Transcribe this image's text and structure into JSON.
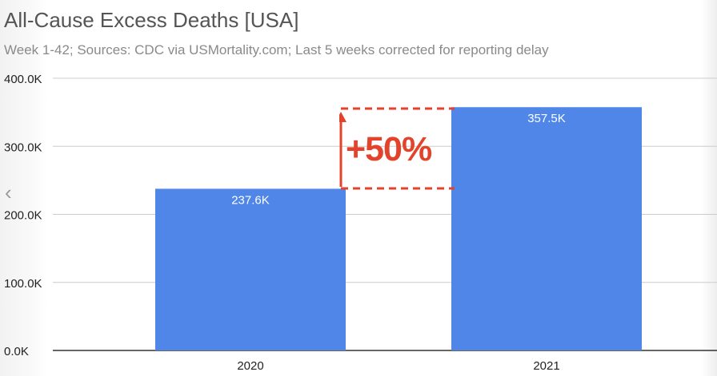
{
  "header": {
    "title": "All-Cause Excess Deaths [USA]",
    "subtitle": "Week 1-42; Sources: CDC via USMortality.com; Last 5 weeks corrected for reporting delay"
  },
  "nav": {
    "prev_icon": "chevron-left-icon",
    "prev_glyph": "‹"
  },
  "annotation": {
    "label": "+50%",
    "color": "#e3432b"
  },
  "colors": {
    "bar": "#4f86e8",
    "grid": "#cccccc",
    "axis": "#333333",
    "tick_text": "#222222",
    "data_label": "#ffffff"
  },
  "chart_data": {
    "type": "bar",
    "title": "All-Cause Excess Deaths [USA]",
    "subtitle": "Week 1-42; Sources: CDC via USMortality.com; Last 5 weeks corrected for reporting delay",
    "categories": [
      "2020",
      "2021"
    ],
    "values": [
      237600,
      357500
    ],
    "data_labels": [
      "237.6K",
      "357.5K"
    ],
    "xlabel": "",
    "ylabel": "",
    "ylim": [
      0,
      400000
    ],
    "yticks": [
      0,
      100000,
      200000,
      300000,
      400000
    ],
    "ytick_labels": [
      "0.0K",
      "100.0K",
      "200.0K",
      "300.0K",
      "400.0K"
    ],
    "grid": true,
    "legend": "none"
  }
}
